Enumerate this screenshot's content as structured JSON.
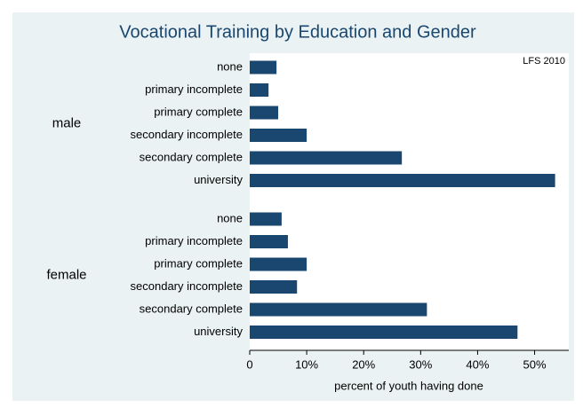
{
  "chart_data": {
    "type": "bar",
    "orientation": "horizontal",
    "title": "Vocational Training by Education and Gender",
    "annotation": "LFS 2010",
    "x_label": "percent of youth having done",
    "color": "#1a476f",
    "groups": [
      {
        "name": "male",
        "categories": [
          "none",
          "primary incomplete",
          "primary complete",
          "secondary incomplete",
          "secondary complete",
          "university"
        ],
        "values": [
          4.7,
          3.3,
          5.0,
          10.0,
          26.7,
          53.6
        ]
      },
      {
        "name": "female",
        "categories": [
          "none",
          "primary incomplete",
          "primary complete",
          "secondary incomplete",
          "secondary complete",
          "university"
        ],
        "values": [
          5.6,
          6.7,
          10.0,
          8.3,
          31.1,
          47.0
        ]
      }
    ],
    "xlim": [
      0,
      56
    ],
    "xticks": [
      0,
      {
        "value": 10,
        "label": "10%"
      },
      {
        "value": 20,
        "label": "20%"
      },
      {
        "value": 30,
        "label": "30%"
      },
      {
        "value": 40,
        "label": "40%"
      },
      {
        "value": 50,
        "label": "50%"
      }
    ],
    "grid": false
  }
}
